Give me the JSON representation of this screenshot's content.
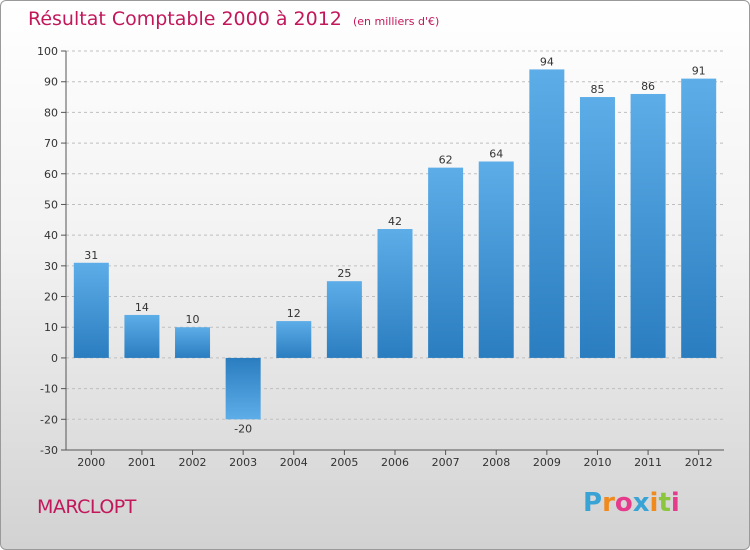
{
  "title": "Résultat Comptable 2000 à 2012",
  "subtitle": "(en milliers d'€)",
  "commune": "MARCLOPT",
  "brand": {
    "letters": [
      "P",
      "r",
      "o",
      "x",
      "i",
      "t",
      "i"
    ],
    "colors": [
      "#3aa3d6",
      "#f08a1c",
      "#e63a8c",
      "#3aa3d6",
      "#f08a1c",
      "#8cc63f",
      "#e63a8c"
    ]
  },
  "colors": {
    "accent": "#c2185b",
    "bar_light": "#5dade8",
    "bar_dark": "#2a7dbf",
    "grid": "#bfbfbf"
  },
  "chart_data": {
    "type": "bar",
    "title": "Résultat Comptable 2000 à 2012",
    "xlabel": "",
    "ylabel": "",
    "categories": [
      "2000",
      "2001",
      "2002",
      "2003",
      "2004",
      "2005",
      "2006",
      "2007",
      "2008",
      "2009",
      "2010",
      "2011",
      "2012"
    ],
    "values": [
      31,
      14,
      10,
      -20,
      12,
      25,
      42,
      62,
      64,
      94,
      85,
      86,
      91
    ],
    "ylim": [
      -30,
      100
    ],
    "yticks": [
      -30,
      -20,
      -10,
      0,
      10,
      20,
      30,
      40,
      50,
      60,
      70,
      80,
      90,
      100
    ],
    "grid": true
  }
}
